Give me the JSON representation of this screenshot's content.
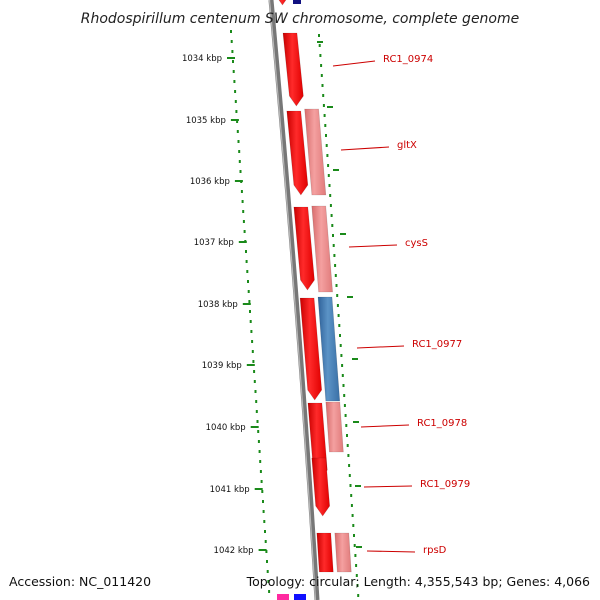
{
  "title": "Rhodospirillum centenum SW chromosome, complete genome",
  "footer": {
    "accession": "Accession: NC_011420",
    "topology": "Topology: circular; Length: 4,355,543 bp; Genes: 4,066"
  },
  "ruler": [
    "1034 kbp",
    "1035 kbp",
    "1036 kbp",
    "1037 kbp",
    "1038 kbp",
    "1039 kbp",
    "1040 kbp",
    "1041 kbp",
    "1042 kbp"
  ],
  "gene_labels": [
    "RC1_0974",
    "gltX",
    "cysS",
    "RC1_0977",
    "RC1_0978",
    "RC1_0979",
    "rpsD"
  ],
  "colors": {
    "backbone": "#777777",
    "cds_forward": "#ff1010",
    "cds_light": "#ec8080",
    "cds_blue": "#3f79ad",
    "label": "#cc0000",
    "ticks": "#1a8a1a"
  }
}
